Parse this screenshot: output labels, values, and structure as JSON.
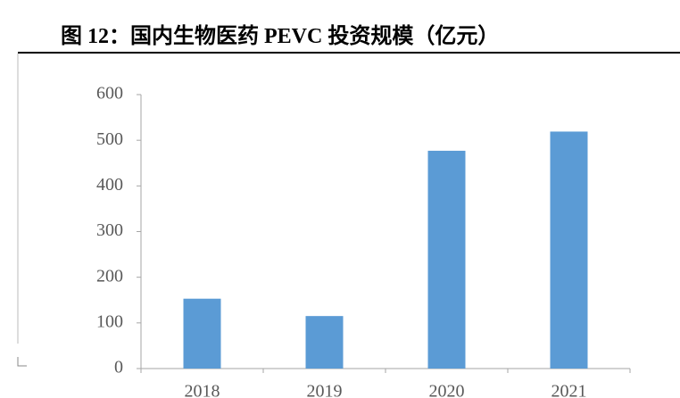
{
  "chart_data": {
    "type": "bar",
    "title": "图 12：国内生物医药 PEVC 投资规模（亿元）",
    "categories": [
      "2018",
      "2019",
      "2020",
      "2021"
    ],
    "values": [
      153,
      115,
      477,
      519
    ],
    "color": "#5b9bd5",
    "ylim": [
      0,
      600
    ],
    "yticks": [
      0,
      100,
      200,
      300,
      400,
      500,
      600
    ],
    "grid": false
  }
}
